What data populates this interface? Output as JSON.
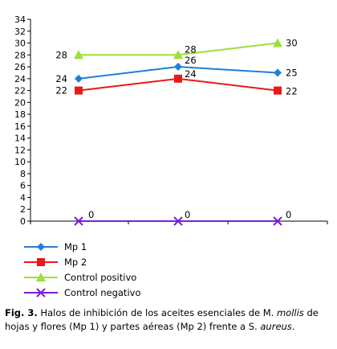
{
  "chart_data": {
    "type": "line",
    "categories": [
      "",
      "",
      ""
    ],
    "ylim": [
      0,
      34
    ],
    "y_ticks": [
      0,
      2,
      4,
      6,
      8,
      10,
      12,
      14,
      16,
      18,
      20,
      22,
      24,
      26,
      28,
      30,
      32,
      34
    ],
    "grid": false,
    "legend_position": "bottom",
    "series": [
      {
        "name": "Mp 1",
        "values": [
          24,
          26,
          25
        ],
        "color": "#1f7fd6",
        "marker": "diamond"
      },
      {
        "name": "Mp 2",
        "values": [
          22,
          24,
          22
        ],
        "color": "#e8191b",
        "marker": "square"
      },
      {
        "name": "Control positivo",
        "values": [
          28,
          28,
          30
        ],
        "color": "#9be03a",
        "marker": "triangle"
      },
      {
        "name": "Control negativo",
        "values": [
          0,
          0,
          0
        ],
        "color": "#7a1fd6",
        "marker": "x"
      }
    ]
  },
  "caption": {
    "label": "Fig. 3.",
    "text_1": " Halos de inhibición de los aceites esenciales de M. ",
    "italic_1": "mollis",
    "text_2": " de hojas y flores (Mp 1) y partes aéreas (Mp 2) frente a S. ",
    "italic_2": "aureus",
    "text_3": "."
  }
}
